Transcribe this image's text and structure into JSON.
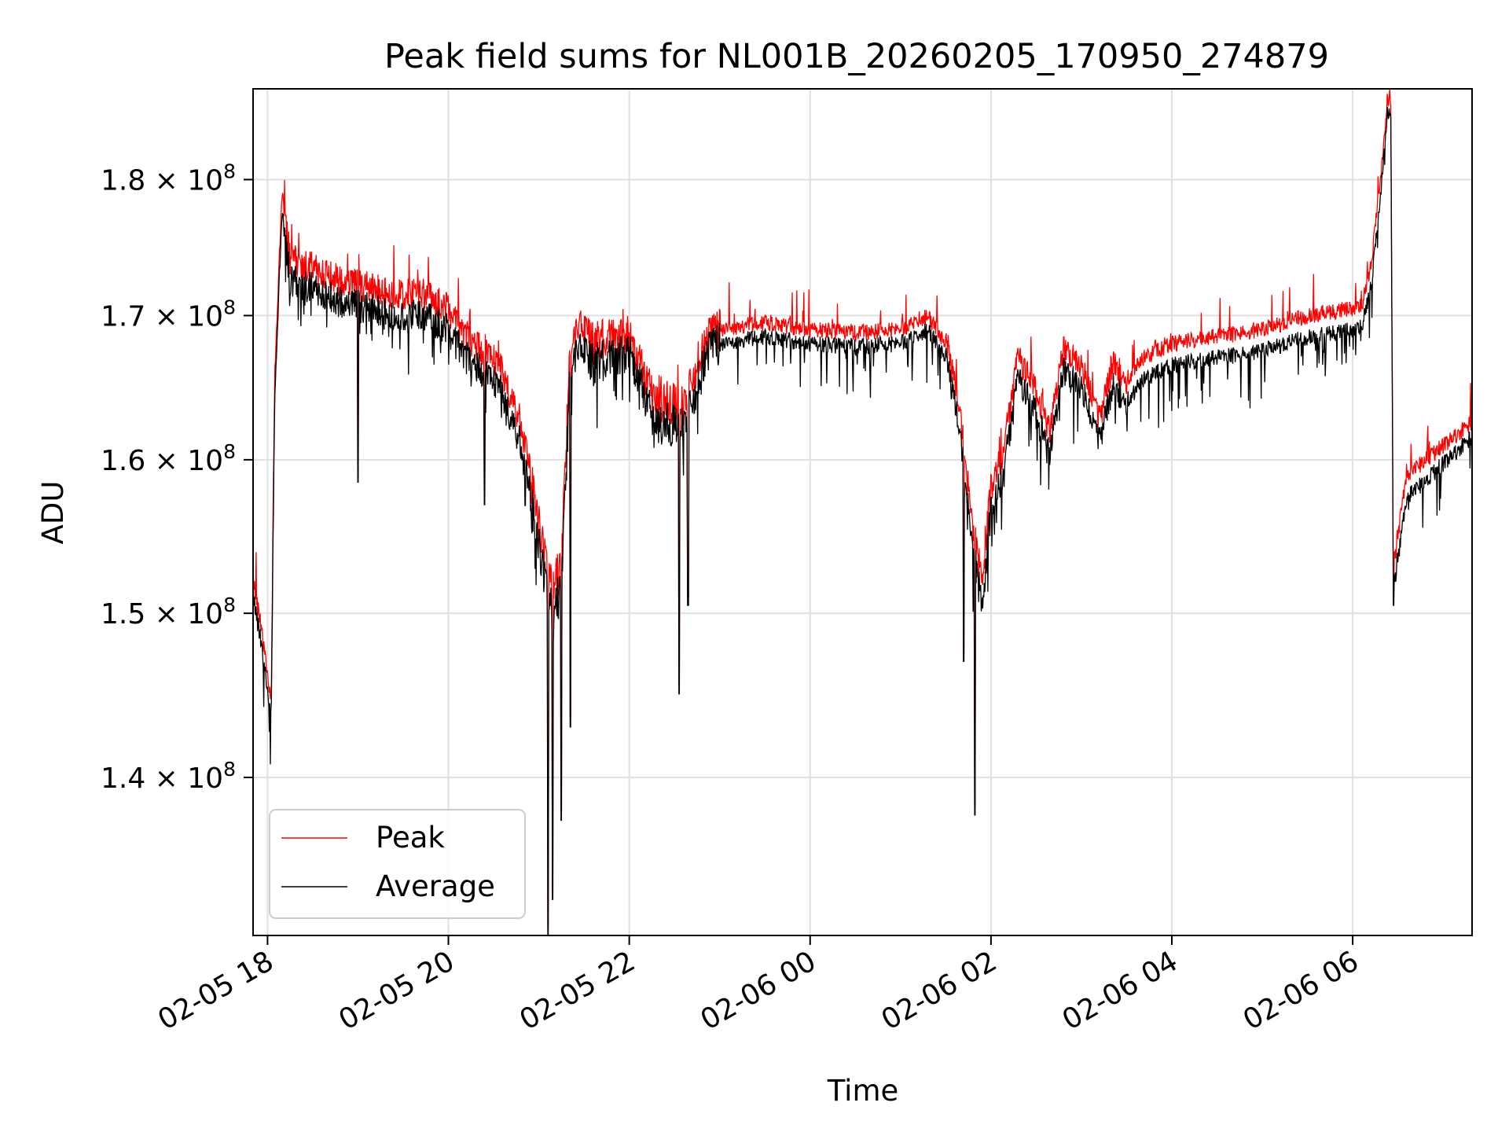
{
  "chart_data": {
    "type": "line",
    "title": "Peak field sums for NL001B_20260205_170950_274879",
    "xlabel": "Time",
    "ylabel": "ADU",
    "yscale": "log",
    "x_unit": "hours since 02-05 17:00",
    "xlim": [
      0.84,
      14.32
    ],
    "ylim": [
      131000000,
      187000000
    ],
    "grid": true,
    "legend_position": "lower-left",
    "x_ticks": [
      {
        "value": 1,
        "label": "02-05 18"
      },
      {
        "value": 3,
        "label": "02-05 20"
      },
      {
        "value": 5,
        "label": "02-05 22"
      },
      {
        "value": 7,
        "label": "02-06 00"
      },
      {
        "value": 9,
        "label": "02-06 02"
      },
      {
        "value": 11,
        "label": "02-06 04"
      },
      {
        "value": 13,
        "label": "02-06 06"
      }
    ],
    "y_ticks": [
      {
        "value": 140000000,
        "mantissa": "1.4",
        "exponent": "8"
      },
      {
        "value": 150000000,
        "mantissa": "1.5",
        "exponent": "8"
      },
      {
        "value": 160000000,
        "mantissa": "1.6",
        "exponent": "8"
      },
      {
        "value": 170000000,
        "mantissa": "1.7",
        "exponent": "8"
      },
      {
        "value": 180000000,
        "mantissa": "1.8",
        "exponent": "8"
      }
    ],
    "baseline_x": [
      0.84,
      0.92,
      1.0,
      1.04,
      1.08,
      1.16,
      1.25,
      1.5,
      1.8,
      2.1,
      2.4,
      2.7,
      3.0,
      3.2,
      3.4,
      3.6,
      3.8,
      3.95,
      4.05,
      4.15,
      4.25,
      4.35,
      4.5,
      4.6,
      4.8,
      5.0,
      5.2,
      5.3,
      5.4,
      5.6,
      5.75,
      5.85,
      6.0,
      6.5,
      7.0,
      7.5,
      8.0,
      8.3,
      8.5,
      8.65,
      8.8,
      8.9,
      9.0,
      9.15,
      9.3,
      9.5,
      9.65,
      9.8,
      10.0,
      10.2,
      10.35,
      10.5,
      10.7,
      10.85,
      11.0,
      11.5,
      12.0,
      12.5,
      13.0,
      13.1,
      13.2,
      13.28,
      13.35,
      13.38,
      13.42,
      13.45,
      13.5,
      13.6,
      14.32
    ],
    "baseline_peak": [
      152.0,
      149.5,
      146.0,
      144.5,
      166.0,
      179.0,
      174.0,
      173.5,
      172.5,
      172.0,
      171.5,
      171.5,
      170.5,
      168.5,
      167.5,
      166.0,
      162.5,
      157.5,
      154.0,
      151.5,
      153.0,
      168.0,
      169.5,
      168.0,
      168.5,
      168.5,
      165.5,
      163.5,
      164.0,
      163.5,
      166.5,
      168.5,
      169.0,
      169.5,
      169.0,
      168.8,
      169.0,
      170.0,
      168.0,
      163.5,
      155.5,
      152.0,
      158.0,
      161.0,
      167.0,
      164.5,
      162.0,
      167.5,
      166.5,
      162.5,
      166.5,
      165.5,
      167.0,
      167.5,
      168.0,
      168.5,
      169.0,
      170.0,
      170.5,
      170.8,
      173.5,
      178.5,
      183.0,
      186.0,
      186.5,
      153.0,
      155.0,
      159.0,
      162.5
    ],
    "baseline_average": [
      151.0,
      148.5,
      145.0,
      143.5,
      164.5,
      177.5,
      172.5,
      172.0,
      171.0,
      170.5,
      170.0,
      170.0,
      169.0,
      167.0,
      166.0,
      164.5,
      161.0,
      156.0,
      152.5,
      150.0,
      151.5,
      166.5,
      168.0,
      166.5,
      167.0,
      167.5,
      164.0,
      162.0,
      162.5,
      162.0,
      165.0,
      167.5,
      168.0,
      168.5,
      168.0,
      167.8,
      168.0,
      169.0,
      167.0,
      162.0,
      154.0,
      150.5,
      156.5,
      159.5,
      165.5,
      163.0,
      160.5,
      166.0,
      165.0,
      161.0,
      165.0,
      164.0,
      165.5,
      166.0,
      166.5,
      167.0,
      167.5,
      168.5,
      169.0,
      169.3,
      172.0,
      177.0,
      182.0,
      185.0,
      185.5,
      151.5,
      153.5,
      157.5,
      161.5
    ],
    "baseline_unit": "1e6 ADU",
    "series": [
      {
        "name": "Peak",
        "color": "#ff0000"
      },
      {
        "name": "Average",
        "color": "#000000"
      }
    ]
  }
}
